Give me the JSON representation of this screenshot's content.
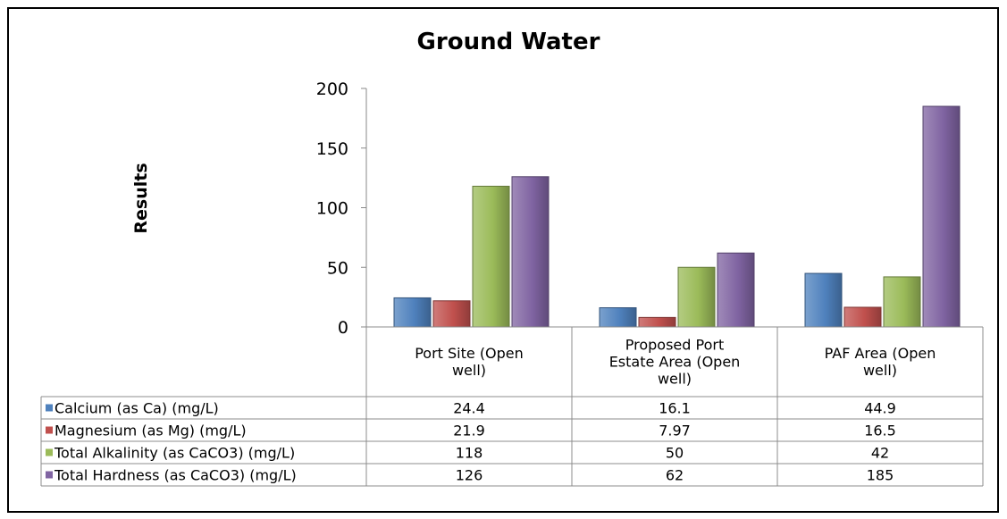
{
  "chart_data": {
    "type": "bar",
    "title": "Ground Water",
    "xlabel": "",
    "ylabel": "Results",
    "ylim": [
      0,
      200
    ],
    "yticks": [
      0,
      50,
      100,
      150,
      200
    ],
    "grid": false,
    "legend": "data-table",
    "categories": [
      [
        "Port Site (Open",
        "well)"
      ],
      [
        "Proposed Port",
        "Estate Area (Open",
        "well)"
      ],
      [
        "PAF Area (Open",
        "well)"
      ]
    ],
    "series": [
      {
        "name": "Calcium (as Ca) (mg/L)",
        "values": [
          24.4,
          16.1,
          44.9
        ],
        "display": [
          "24.4",
          "16.1",
          "44.9"
        ],
        "color": "#4f81bd"
      },
      {
        "name": "Magnesium (as Mg) (mg/L)",
        "values": [
          21.9,
          7.97,
          16.5
        ],
        "display": [
          "21.9",
          "7.97",
          "16.5"
        ],
        "color": "#c0504d"
      },
      {
        "name": "Total Alkalinity (as CaCO3) (mg/L)",
        "values": [
          118,
          50,
          42
        ],
        "display": [
          "118",
          "50",
          "42"
        ],
        "color": "#9bbb59"
      },
      {
        "name": "Total Hardness (as CaCO3) (mg/L)",
        "values": [
          126,
          62,
          185
        ],
        "display": [
          "126",
          "62",
          "185"
        ],
        "color": "#8064a2"
      }
    ]
  }
}
